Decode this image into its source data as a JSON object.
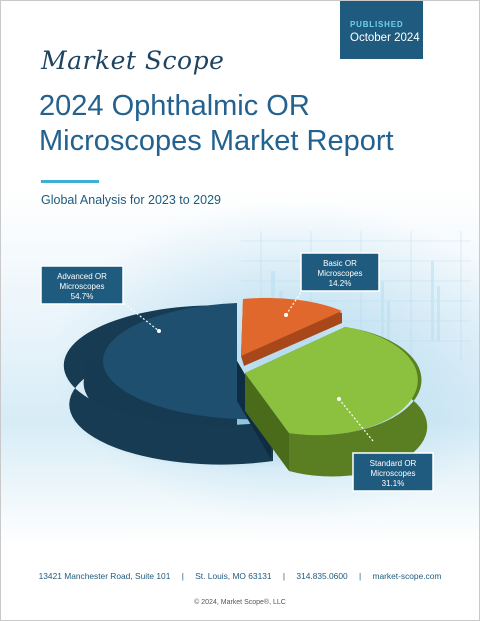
{
  "badge": {
    "label": "PUBLISHED",
    "date": "October 2024"
  },
  "brand": {
    "logo_text": "Market Scope"
  },
  "report": {
    "title_line1": "2024 Ophthalmic OR",
    "title_line2": "Microscopes Market Report",
    "subtitle": "Global Analysis for 2023 to 2029"
  },
  "chart_data": {
    "type": "pie",
    "title": "",
    "slices": [
      {
        "label_line1": "Advanced OR",
        "label_line2": "Microscopes",
        "value": 54.7,
        "value_text": "54.7%",
        "color": "#1f4f6e"
      },
      {
        "label_line1": "Basic OR",
        "label_line2": "Microscopes",
        "value": 14.2,
        "value_text": "14.2%",
        "color": "#e0682c"
      },
      {
        "label_line1": "Standard OR",
        "label_line2": "Microscopes",
        "value": 31.1,
        "value_text": "31.1%",
        "color": "#8bc13f"
      }
    ]
  },
  "footer": {
    "address": "13421 Manchester Road, Suite 101",
    "city": "St. Louis, MO 63131",
    "phone": "314.835.0600",
    "website": "market-scope.com",
    "separator": "|",
    "copyright": "© 2024, Market Scope®, LLC"
  },
  "colors": {
    "accent": "#3bb1d4",
    "brand_dark": "#1f5b7e",
    "title": "#23628f"
  }
}
